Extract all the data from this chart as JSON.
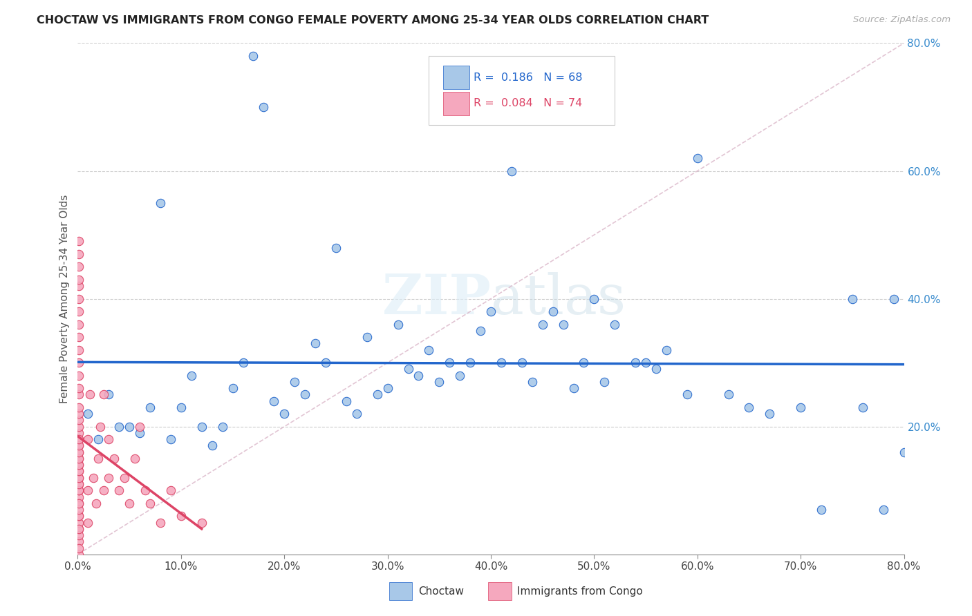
{
  "title": "CHOCTAW VS IMMIGRANTS FROM CONGO FEMALE POVERTY AMONG 25-34 YEAR OLDS CORRELATION CHART",
  "source": "Source: ZipAtlas.com",
  "ylabel": "Female Poverty Among 25-34 Year Olds",
  "legend_label1": "Choctaw",
  "legend_label2": "Immigrants from Congo",
  "R1": 0.186,
  "N1": 68,
  "R2": 0.084,
  "N2": 74,
  "color1": "#a8c8e8",
  "color2": "#f5a8be",
  "line_color1": "#2266cc",
  "line_color2": "#dd4466",
  "ref_line_color": "#ddbbcc",
  "xlim": [
    0.0,
    0.8
  ],
  "ylim": [
    0.0,
    0.8
  ],
  "xticks": [
    0.0,
    0.1,
    0.2,
    0.3,
    0.4,
    0.5,
    0.6,
    0.7,
    0.8
  ],
  "yticks": [
    0.2,
    0.4,
    0.6,
    0.8
  ],
  "background_color": "#ffffff",
  "choctaw_x": [
    0.01,
    0.02,
    0.03,
    0.04,
    0.05,
    0.06,
    0.07,
    0.08,
    0.09,
    0.1,
    0.11,
    0.12,
    0.13,
    0.14,
    0.15,
    0.16,
    0.17,
    0.18,
    0.19,
    0.2,
    0.21,
    0.22,
    0.23,
    0.24,
    0.25,
    0.26,
    0.27,
    0.28,
    0.29,
    0.3,
    0.31,
    0.32,
    0.33,
    0.34,
    0.35,
    0.36,
    0.37,
    0.38,
    0.39,
    0.4,
    0.41,
    0.42,
    0.43,
    0.44,
    0.45,
    0.46,
    0.47,
    0.48,
    0.49,
    0.5,
    0.51,
    0.52,
    0.54,
    0.55,
    0.56,
    0.57,
    0.59,
    0.6,
    0.63,
    0.65,
    0.67,
    0.7,
    0.72,
    0.75,
    0.76,
    0.78,
    0.79,
    0.8
  ],
  "choctaw_y": [
    0.22,
    0.18,
    0.25,
    0.2,
    0.2,
    0.19,
    0.23,
    0.55,
    0.18,
    0.23,
    0.28,
    0.2,
    0.17,
    0.2,
    0.26,
    0.3,
    0.78,
    0.7,
    0.24,
    0.22,
    0.27,
    0.25,
    0.33,
    0.3,
    0.48,
    0.24,
    0.22,
    0.34,
    0.25,
    0.26,
    0.36,
    0.29,
    0.28,
    0.32,
    0.27,
    0.3,
    0.28,
    0.3,
    0.35,
    0.38,
    0.3,
    0.6,
    0.3,
    0.27,
    0.36,
    0.38,
    0.36,
    0.26,
    0.3,
    0.4,
    0.27,
    0.36,
    0.3,
    0.3,
    0.29,
    0.32,
    0.25,
    0.62,
    0.25,
    0.23,
    0.22,
    0.23,
    0.07,
    0.4,
    0.23,
    0.07,
    0.4,
    0.16
  ],
  "congo_x": [
    0.001,
    0.001,
    0.001,
    0.001,
    0.001,
    0.001,
    0.001,
    0.001,
    0.001,
    0.001,
    0.001,
    0.001,
    0.001,
    0.001,
    0.001,
    0.001,
    0.001,
    0.001,
    0.001,
    0.001,
    0.001,
    0.001,
    0.001,
    0.001,
    0.001,
    0.001,
    0.001,
    0.001,
    0.001,
    0.001,
    0.001,
    0.001,
    0.001,
    0.001,
    0.001,
    0.001,
    0.001,
    0.001,
    0.001,
    0.001,
    0.001,
    0.001,
    0.001,
    0.001,
    0.001,
    0.001,
    0.001,
    0.001,
    0.001,
    0.001,
    0.01,
    0.01,
    0.01,
    0.012,
    0.015,
    0.018,
    0.02,
    0.022,
    0.025,
    0.025,
    0.03,
    0.03,
    0.035,
    0.04,
    0.045,
    0.05,
    0.055,
    0.06,
    0.065,
    0.07,
    0.08,
    0.09,
    0.1,
    0.12
  ],
  "congo_y": [
    0.0,
    0.02,
    0.04,
    0.05,
    0.06,
    0.08,
    0.09,
    0.1,
    0.11,
    0.12,
    0.13,
    0.14,
    0.15,
    0.16,
    0.17,
    0.18,
    0.19,
    0.2,
    0.21,
    0.22,
    0.23,
    0.25,
    0.26,
    0.28,
    0.3,
    0.32,
    0.34,
    0.36,
    0.38,
    0.4,
    0.42,
    0.43,
    0.45,
    0.47,
    0.49,
    0.01,
    0.03,
    0.04,
    0.06,
    0.07,
    0.08,
    0.1,
    0.11,
    0.12,
    0.13,
    0.14,
    0.15,
    0.16,
    0.17,
    0.18,
    0.05,
    0.1,
    0.18,
    0.25,
    0.12,
    0.08,
    0.15,
    0.2,
    0.1,
    0.25,
    0.12,
    0.18,
    0.15,
    0.1,
    0.12,
    0.08,
    0.15,
    0.2,
    0.1,
    0.08,
    0.05,
    0.1,
    0.06,
    0.05
  ]
}
